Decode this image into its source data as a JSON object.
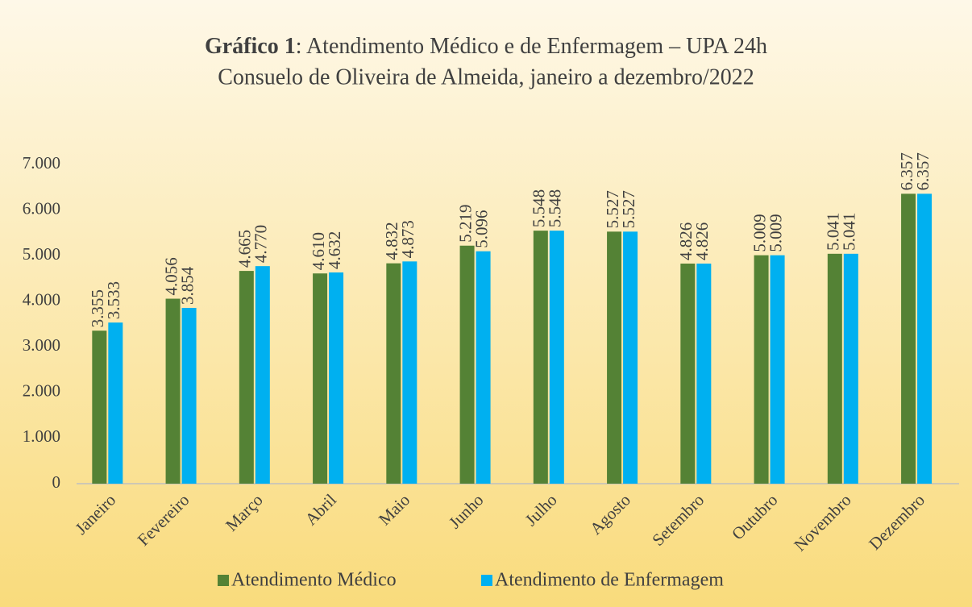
{
  "chart_data": {
    "type": "bar",
    "title_parts": [
      "Gráfico 1",
      ": Atendimento Médico e de Enfermagem – UPA 24h"
    ],
    "subtitle": "Consuelo de Oliveira de Almeida, janeiro a dezembro/2022",
    "categories": [
      "Janeiro",
      "Fevereiro",
      "Março",
      "Abril",
      "Maio",
      "Junho",
      "Julho",
      "Agosto",
      "Setembro",
      "Outubro",
      "Novembro",
      "Dezembro"
    ],
    "series": [
      {
        "name": "Atendimento Médico",
        "color": "#548235",
        "values": [
          3355,
          4056,
          4665,
          4610,
          4832,
          5219,
          5548,
          5527,
          4826,
          5009,
          5041,
          6357
        ],
        "value_labels": [
          "3.355",
          "4.056",
          "4.665",
          "4.610",
          "4.832",
          "5.219",
          "5.548",
          "5.527",
          "4.826",
          "5.009",
          "5.041",
          "6.357"
        ]
      },
      {
        "name": "Atendimento de Enfermagem",
        "color": "#00b0f0",
        "values": [
          3533,
          3854,
          4770,
          4632,
          4873,
          5096,
          5548,
          5527,
          4826,
          5009,
          5041,
          6357
        ],
        "value_labels": [
          "3.533",
          "3.854",
          "4.770",
          "4.632",
          "4.873",
          "5.096",
          "5.548",
          "5.527",
          "4.826",
          "5.009",
          "5.041",
          "6.357"
        ]
      }
    ],
    "ylim": [
      0,
      7000
    ],
    "yticks": [
      0,
      {
        "value": 1000,
        "label": "1.000"
      },
      {
        "value": 2000,
        "label": "2.000"
      },
      {
        "value": 3000,
        "label": "3.000"
      },
      {
        "value": 4000,
        "label": "4.000"
      },
      {
        "value": 5000,
        "label": "5.000"
      },
      {
        "value": 6000,
        "label": "6.000"
      },
      {
        "value": 7000,
        "label": "7.000"
      }
    ],
    "grid": false,
    "legend": "bottom"
  }
}
